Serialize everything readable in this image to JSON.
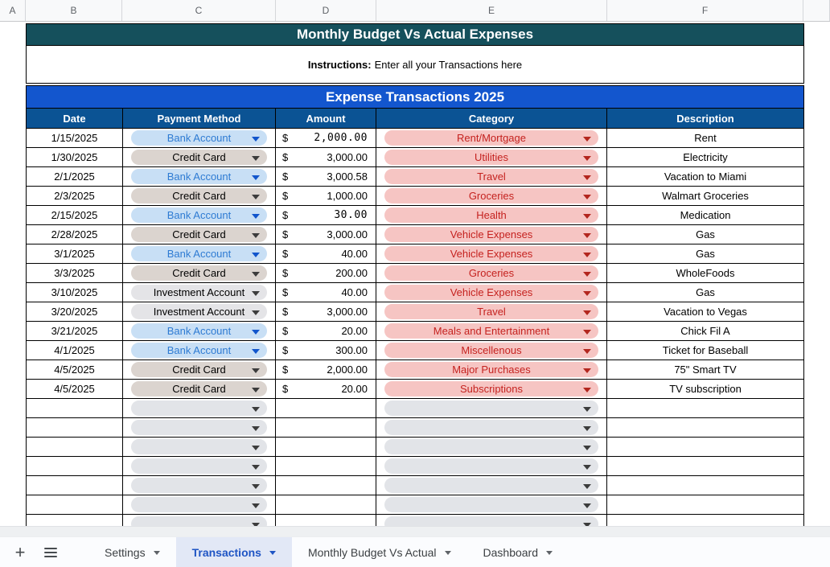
{
  "columns": [
    "A",
    "B",
    "C",
    "D",
    "E",
    "F"
  ],
  "title": "Monthly Budget Vs Actual Expenses",
  "instructions": {
    "label": "Instructions:",
    "text": "Enter all your Transactions here"
  },
  "section_title": "Expense Transactions 2025",
  "table": {
    "headers": [
      "Date",
      "Payment Method",
      "Amount",
      "Category",
      "Description"
    ],
    "rows": [
      {
        "date": "1/15/2025",
        "payment": "Bank Account",
        "payment_style": "bank",
        "currency": "$",
        "amount": "2,000.00",
        "mono": true,
        "category": "Rent/Mortgage",
        "description": "Rent"
      },
      {
        "date": "1/30/2025",
        "payment": "Credit Card",
        "payment_style": "credit",
        "currency": "$",
        "amount": "3,000.00",
        "mono": false,
        "category": "Utilities",
        "description": "Electricity"
      },
      {
        "date": "2/1/2025",
        "payment": "Bank Account",
        "payment_style": "bank",
        "currency": "$",
        "amount": "3,000.58",
        "mono": false,
        "category": "Travel",
        "description": "Vacation to Miami"
      },
      {
        "date": "2/3/2025",
        "payment": "Credit Card",
        "payment_style": "credit",
        "currency": "$",
        "amount": "1,000.00",
        "mono": false,
        "category": "Groceries",
        "description": "Walmart Groceries"
      },
      {
        "date": "2/15/2025",
        "payment": "Bank Account",
        "payment_style": "bank",
        "currency": "$",
        "amount": "30.00",
        "mono": true,
        "category": "Health",
        "description": "Medication"
      },
      {
        "date": "2/28/2025",
        "payment": "Credit Card",
        "payment_style": "credit",
        "currency": "$",
        "amount": "3,000.00",
        "mono": false,
        "category": "Vehicle Expenses",
        "description": "Gas"
      },
      {
        "date": "3/1/2025",
        "payment": "Bank Account",
        "payment_style": "bank",
        "currency": "$",
        "amount": "40.00",
        "mono": false,
        "category": "Vehicle Expenses",
        "description": "Gas"
      },
      {
        "date": "3/3/2025",
        "payment": "Credit Card",
        "payment_style": "credit",
        "currency": "$",
        "amount": "200.00",
        "mono": false,
        "category": "Groceries",
        "description": "WholeFoods"
      },
      {
        "date": "3/10/2025",
        "payment": "Investment Account",
        "payment_style": "invest",
        "currency": "$",
        "amount": "40.00",
        "mono": false,
        "category": "Vehicle Expenses",
        "description": "Gas"
      },
      {
        "date": "3/20/2025",
        "payment": "Investment Account",
        "payment_style": "invest",
        "currency": "$",
        "amount": "3,000.00",
        "mono": false,
        "category": "Travel",
        "description": "Vacation to Vegas"
      },
      {
        "date": "3/21/2025",
        "payment": "Bank Account",
        "payment_style": "bank",
        "currency": "$",
        "amount": "20.00",
        "mono": false,
        "category": "Meals and Entertainment",
        "description": "Chick Fil A"
      },
      {
        "date": "4/1/2025",
        "payment": "Bank Account",
        "payment_style": "bank",
        "currency": "$",
        "amount": "300.00",
        "mono": false,
        "category": "Miscellenous",
        "description": "Ticket for Baseball"
      },
      {
        "date": "4/5/2025",
        "payment": "Credit Card",
        "payment_style": "credit",
        "currency": "$",
        "amount": "2,000.00",
        "mono": false,
        "category": "Major Purchases",
        "description": "75\" Smart TV"
      },
      {
        "date": "4/5/2025",
        "payment": "Credit Card",
        "payment_style": "credit",
        "currency": "$",
        "amount": "20.00",
        "mono": false,
        "category": "Subscriptions",
        "description": "TV subscription"
      }
    ],
    "empty_row_count": 7
  },
  "tabbar": {
    "tabs": [
      {
        "label": "Settings",
        "active": false
      },
      {
        "label": "Transactions",
        "active": true
      },
      {
        "label": "Monthly Budget Vs Actual",
        "active": false
      },
      {
        "label": "Dashboard",
        "active": false
      }
    ]
  },
  "colors": {
    "title_bg": "#15505c",
    "banner_bg": "#1356ce",
    "header_bg": "#0b5394",
    "bank_pill_bg": "#c8dff5",
    "bank_pill_text": "#2e7bd3",
    "credit_pill_bg": "#dbd4cf",
    "invest_pill_bg": "#e4e4e7",
    "category_pill_bg": "#f6c5c3",
    "category_pill_text": "#c5221f",
    "blank_pill_bg": "#e2e4e8",
    "active_tab_bg": "#e2e8f6",
    "active_tab_text": "#1f55c4"
  }
}
